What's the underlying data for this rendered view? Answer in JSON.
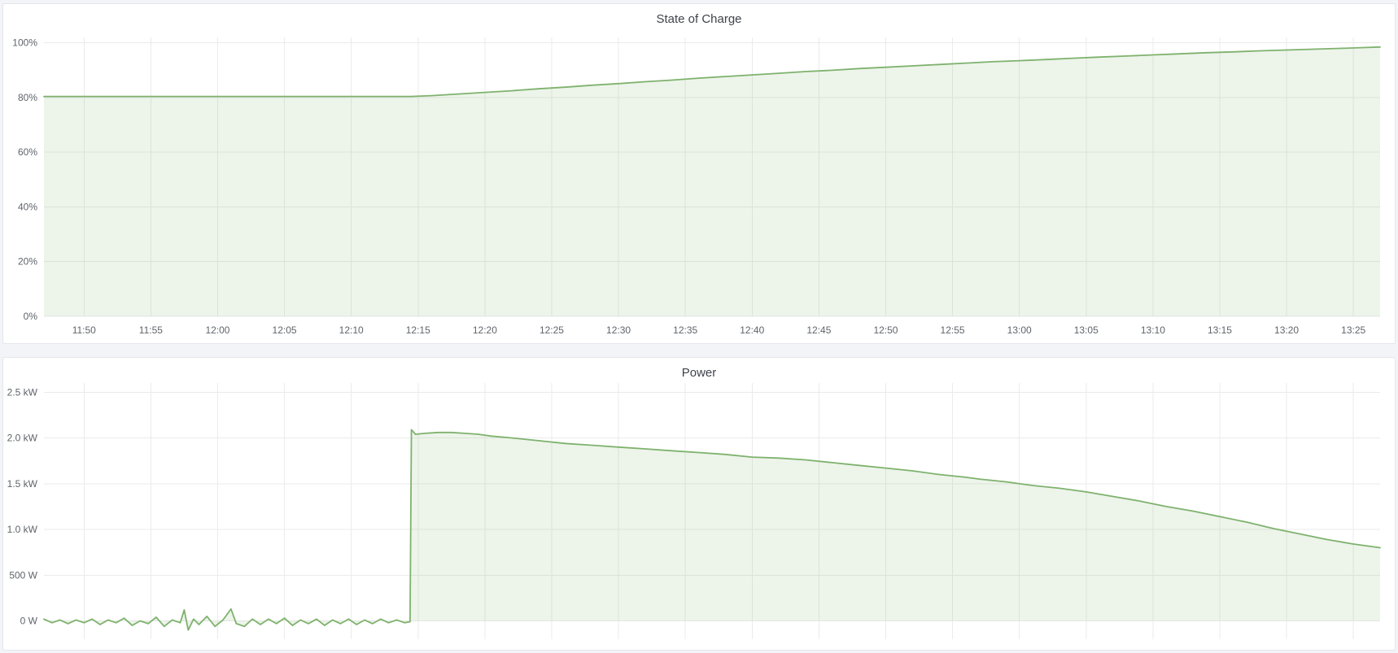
{
  "palette": {
    "bg_page": "#f3f4f8",
    "panel_bg": "#ffffff",
    "panel_border": "#e4e6eb",
    "title_text": "#3f434c",
    "tick_text": "#5f646b",
    "grid": "#ebebeb",
    "series_green": "#7eb26d"
  },
  "chart_data": [
    {
      "type": "area",
      "title": "State of Charge",
      "legend_position": "none",
      "grid": true,
      "x_window": {
        "from": "11:47",
        "to": "13:27"
      },
      "xlim_min": [
        0,
        100
      ],
      "ylim": [
        0,
        102
      ],
      "x_ticks": [
        {
          "t": 3,
          "label": "11:50"
        },
        {
          "t": 8,
          "label": "11:55"
        },
        {
          "t": 13,
          "label": "12:00"
        },
        {
          "t": 18,
          "label": "12:05"
        },
        {
          "t": 23,
          "label": "12:10"
        },
        {
          "t": 28,
          "label": "12:15"
        },
        {
          "t": 33,
          "label": "12:20"
        },
        {
          "t": 38,
          "label": "12:25"
        },
        {
          "t": 43,
          "label": "12:30"
        },
        {
          "t": 48,
          "label": "12:35"
        },
        {
          "t": 53,
          "label": "12:40"
        },
        {
          "t": 58,
          "label": "12:45"
        },
        {
          "t": 63,
          "label": "12:50"
        },
        {
          "t": 68,
          "label": "12:55"
        },
        {
          "t": 73,
          "label": "13:00"
        },
        {
          "t": 78,
          "label": "13:05"
        },
        {
          "t": 83,
          "label": "13:10"
        },
        {
          "t": 88,
          "label": "13:15"
        },
        {
          "t": 93,
          "label": "13:20"
        },
        {
          "t": 98,
          "label": "13:25"
        }
      ],
      "y_ticks": [
        {
          "value": 0,
          "label": "0%"
        },
        {
          "value": 20,
          "label": "20%"
        },
        {
          "value": 40,
          "label": "40%"
        },
        {
          "value": 60,
          "label": "60%"
        },
        {
          "value": 80,
          "label": "80%"
        },
        {
          "value": 100,
          "label": "100%"
        }
      ],
      "series": [
        {
          "name": "State of Charge",
          "color": "#7eb26d",
          "fill_opacity": 0.14,
          "fill_to": 0,
          "points": [
            [
              0,
              80.4
            ],
            [
              4,
              80.4
            ],
            [
              8,
              80.4
            ],
            [
              12,
              80.4
            ],
            [
              16,
              80.4
            ],
            [
              20,
              80.4
            ],
            [
              24,
              80.4
            ],
            [
              27.5,
              80.4
            ],
            [
              29,
              80.7
            ],
            [
              31,
              81.3
            ],
            [
              33,
              81.9
            ],
            [
              35,
              82.5
            ],
            [
              37,
              83.2
            ],
            [
              39,
              83.8
            ],
            [
              41,
              84.5
            ],
            [
              43,
              85.1
            ],
            [
              45,
              85.8
            ],
            [
              47,
              86.4
            ],
            [
              49,
              87.1
            ],
            [
              51,
              87.7
            ],
            [
              53,
              88.3
            ],
            [
              55,
              88.9
            ],
            [
              57,
              89.5
            ],
            [
              59,
              90.0
            ],
            [
              61,
              90.6
            ],
            [
              63,
              91.1
            ],
            [
              65,
              91.6
            ],
            [
              67,
              92.1
            ],
            [
              69,
              92.6
            ],
            [
              71,
              93.1
            ],
            [
              73,
              93.5
            ],
            [
              75,
              93.9
            ],
            [
              77,
              94.4
            ],
            [
              79,
              94.8
            ],
            [
              81,
              95.2
            ],
            [
              83,
              95.6
            ],
            [
              85,
              96.0
            ],
            [
              87,
              96.4
            ],
            [
              89,
              96.7
            ],
            [
              91,
              97.1
            ],
            [
              93,
              97.4
            ],
            [
              95,
              97.7
            ],
            [
              97,
              98.0
            ],
            [
              99,
              98.3
            ],
            [
              100,
              98.5
            ]
          ]
        }
      ]
    },
    {
      "type": "area",
      "title": "Power",
      "legend_position": "none",
      "grid": true,
      "x_window": {
        "from": "11:47",
        "to": "13:27"
      },
      "xlim_min": [
        0,
        100
      ],
      "ylim": [
        -0.2,
        2.6
      ],
      "x_ticks": [
        {
          "t": 3,
          "label": ""
        },
        {
          "t": 8,
          "label": ""
        },
        {
          "t": 13,
          "label": ""
        },
        {
          "t": 18,
          "label": ""
        },
        {
          "t": 23,
          "label": ""
        },
        {
          "t": 28,
          "label": ""
        },
        {
          "t": 33,
          "label": ""
        },
        {
          "t": 38,
          "label": ""
        },
        {
          "t": 43,
          "label": ""
        },
        {
          "t": 48,
          "label": ""
        },
        {
          "t": 53,
          "label": ""
        },
        {
          "t": 58,
          "label": ""
        },
        {
          "t": 63,
          "label": ""
        },
        {
          "t": 68,
          "label": ""
        },
        {
          "t": 73,
          "label": ""
        },
        {
          "t": 78,
          "label": ""
        },
        {
          "t": 83,
          "label": ""
        },
        {
          "t": 88,
          "label": ""
        },
        {
          "t": 93,
          "label": ""
        },
        {
          "t": 98,
          "label": ""
        }
      ],
      "y_ticks": [
        {
          "value": 0,
          "label": "0 W"
        },
        {
          "value": 0.5,
          "label": "500 W"
        },
        {
          "value": 1.0,
          "label": "1.0 kW"
        },
        {
          "value": 1.5,
          "label": "1.5 kW"
        },
        {
          "value": 2.0,
          "label": "2.0 kW"
        },
        {
          "value": 2.5,
          "label": "2.5 kW"
        }
      ],
      "series": [
        {
          "name": "Power",
          "color": "#7eb26d",
          "fill_opacity": 0.14,
          "fill_to": 0,
          "points": [
            [
              0,
              0.02
            ],
            [
              0.6,
              -0.02
            ],
            [
              1.2,
              0.01
            ],
            [
              1.8,
              -0.03
            ],
            [
              2.4,
              0.01
            ],
            [
              3,
              -0.02
            ],
            [
              3.6,
              0.02
            ],
            [
              4.2,
              -0.04
            ],
            [
              4.8,
              0.01
            ],
            [
              5.4,
              -0.02
            ],
            [
              6,
              0.03
            ],
            [
              6.6,
              -0.05
            ],
            [
              7.2,
              0.0
            ],
            [
              7.8,
              -0.03
            ],
            [
              8.4,
              0.04
            ],
            [
              9,
              -0.06
            ],
            [
              9.6,
              0.01
            ],
            [
              10.2,
              -0.02
            ],
            [
              10.5,
              0.12
            ],
            [
              10.8,
              -0.1
            ],
            [
              11.2,
              0.02
            ],
            [
              11.6,
              -0.04
            ],
            [
              12.2,
              0.05
            ],
            [
              12.8,
              -0.06
            ],
            [
              13.4,
              0.01
            ],
            [
              14,
              0.13
            ],
            [
              14.4,
              -0.03
            ],
            [
              15,
              -0.06
            ],
            [
              15.6,
              0.02
            ],
            [
              16.2,
              -0.04
            ],
            [
              16.8,
              0.02
            ],
            [
              17.4,
              -0.03
            ],
            [
              18,
              0.03
            ],
            [
              18.6,
              -0.05
            ],
            [
              19.2,
              0.01
            ],
            [
              19.8,
              -0.03
            ],
            [
              20.4,
              0.02
            ],
            [
              21,
              -0.05
            ],
            [
              21.6,
              0.01
            ],
            [
              22.2,
              -0.03
            ],
            [
              22.8,
              0.02
            ],
            [
              23.4,
              -0.04
            ],
            [
              24,
              0.01
            ],
            [
              24.6,
              -0.03
            ],
            [
              25.2,
              0.02
            ],
            [
              25.8,
              -0.02
            ],
            [
              26.4,
              0.01
            ],
            [
              27,
              -0.02
            ],
            [
              27.4,
              -0.01
            ],
            [
              27.5,
              2.09
            ],
            [
              27.8,
              2.04
            ],
            [
              28.5,
              2.05
            ],
            [
              29.5,
              2.06
            ],
            [
              30.5,
              2.06
            ],
            [
              31.5,
              2.05
            ],
            [
              32.5,
              2.04
            ],
            [
              33.5,
              2.02
            ],
            [
              35,
              2.0
            ],
            [
              37,
              1.97
            ],
            [
              39,
              1.94
            ],
            [
              41,
              1.92
            ],
            [
              43,
              1.9
            ],
            [
              45,
              1.88
            ],
            [
              47,
              1.86
            ],
            [
              49,
              1.84
            ],
            [
              51,
              1.82
            ],
            [
              53,
              1.79
            ],
            [
              55,
              1.78
            ],
            [
              57,
              1.76
            ],
            [
              59,
              1.73
            ],
            [
              61,
              1.7
            ],
            [
              63,
              1.67
            ],
            [
              65,
              1.64
            ],
            [
              67,
              1.6
            ],
            [
              69,
              1.57
            ],
            [
              70,
              1.55
            ],
            [
              72,
              1.52
            ],
            [
              74,
              1.48
            ],
            [
              76,
              1.45
            ],
            [
              78,
              1.41
            ],
            [
              80,
              1.36
            ],
            [
              82,
              1.31
            ],
            [
              84,
              1.25
            ],
            [
              86,
              1.2
            ],
            [
              88,
              1.14
            ],
            [
              90,
              1.08
            ],
            [
              92,
              1.01
            ],
            [
              94,
              0.95
            ],
            [
              96,
              0.89
            ],
            [
              98,
              0.84
            ],
            [
              100,
              0.8
            ]
          ]
        }
      ]
    }
  ]
}
